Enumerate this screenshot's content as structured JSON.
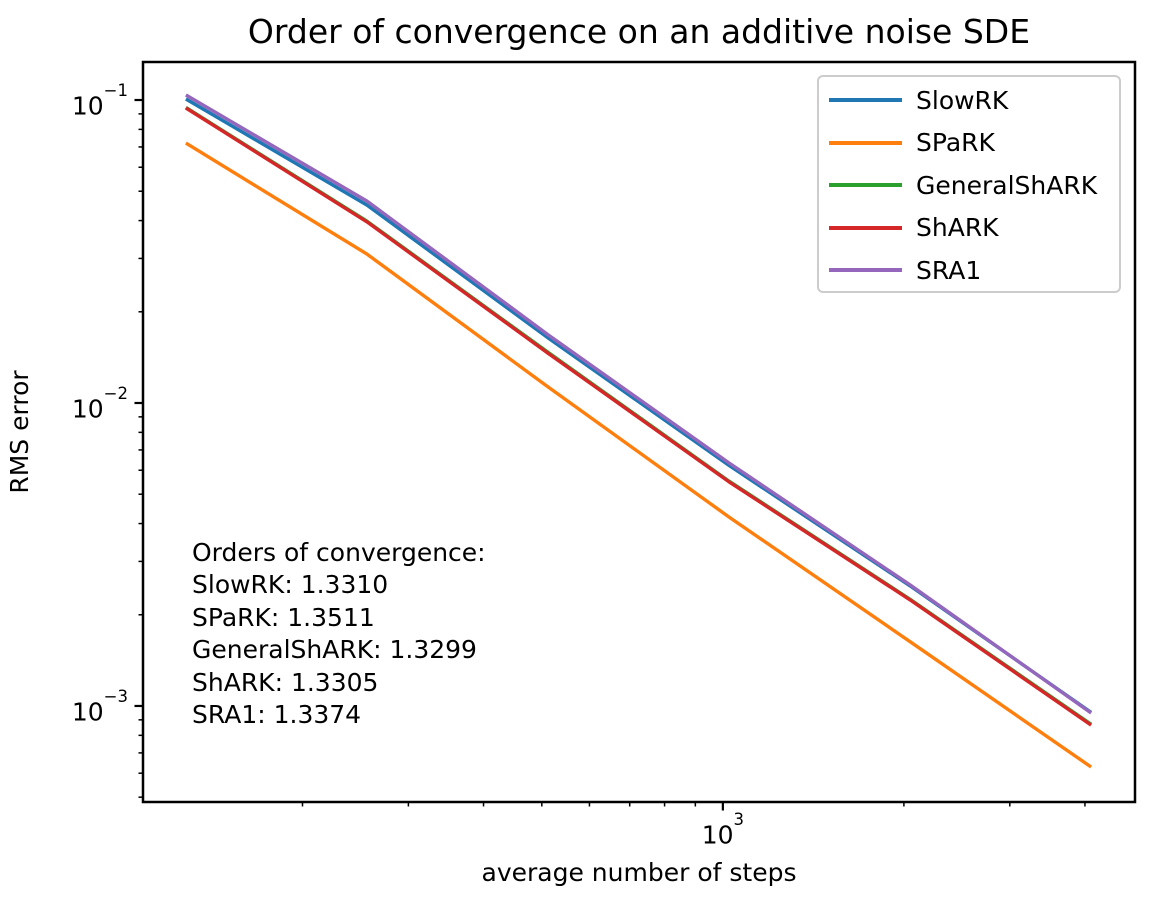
{
  "chart_data": {
    "type": "line",
    "title": "Order of convergence on an additive noise SDE",
    "xlabel": "average number of steps",
    "ylabel": "RMS error",
    "xscale": "log",
    "yscale": "log",
    "xlim": [
      108.6,
      4845
    ],
    "ylim": [
      0.000482,
      0.1335
    ],
    "grid": false,
    "x": [
      128,
      256,
      512,
      1024,
      2048,
      4096
    ],
    "series": [
      {
        "name": "SlowRK",
        "color": "#1f77b4",
        "values": [
          0.1008,
          0.045,
          0.0164,
          0.00622,
          0.00249,
          0.000952
        ]
      },
      {
        "name": "SPaRK",
        "color": "#ff7f0e",
        "values": [
          0.0721,
          0.031,
          0.0113,
          0.0042,
          0.00163,
          0.000629
        ]
      },
      {
        "name": "GeneralShARK",
        "color": "#2ca02c",
        "values": [
          0.0945,
          0.0398,
          0.0147,
          0.00552,
          0.00225,
          0.00087
        ]
      },
      {
        "name": "ShARK",
        "color": "#d62728",
        "values": [
          0.0941,
          0.0396,
          0.0146,
          0.00549,
          0.00224,
          0.000865
        ]
      },
      {
        "name": "SRA1",
        "color": "#9467bd",
        "values": [
          0.1039,
          0.0464,
          0.0168,
          0.00634,
          0.00251,
          0.000948
        ]
      }
    ],
    "x_major_ticks": [
      1000
    ],
    "y_major_ticks": [
      0.1,
      0.01,
      0.001
    ],
    "x_tick_labels": [
      "10³"
    ],
    "y_tick_labels": [
      "10⁻¹",
      "10⁻²",
      "10⁻³"
    ],
    "legend": {
      "location": "upper right",
      "entries": [
        "SlowRK",
        "SPaRK",
        "GeneralShARK",
        "ShARK",
        "SRA1"
      ]
    },
    "annotation_lines": [
      "Orders of convergence:",
      "SlowRK: 1.3310",
      "SPaRK: 1.3511",
      "GeneralShARK: 1.3299",
      "ShARK: 1.3305",
      "SRA1: 1.3374"
    ],
    "axis_color": "#000000",
    "text_color": "#000000"
  }
}
